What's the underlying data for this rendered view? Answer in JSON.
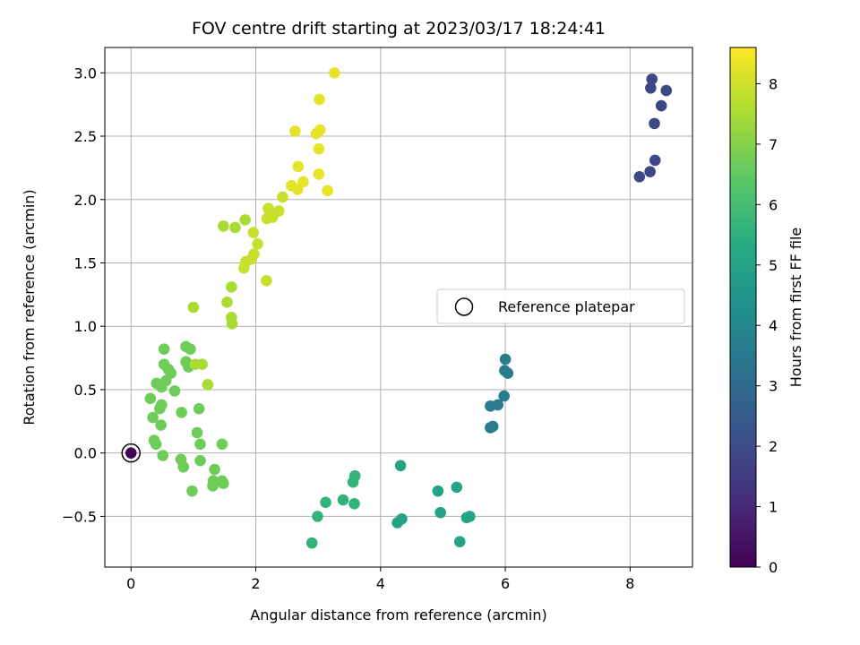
{
  "chart_data": {
    "type": "scatter",
    "title": "FOV centre drift starting at 2023/03/17 18:24:41",
    "xlabel": "Angular distance from reference (arcmin)",
    "ylabel": "Rotation from reference (arcmin)",
    "xlim": [
      -0.42,
      9.0
    ],
    "ylim": [
      -0.9,
      3.2
    ],
    "xticks": [
      0,
      2,
      4,
      6,
      8
    ],
    "xtick_labels": [
      "0",
      "2",
      "4",
      "6",
      "8"
    ],
    "yticks": [
      -0.5,
      0.0,
      0.5,
      1.0,
      1.5,
      2.0,
      2.5,
      3.0
    ],
    "ytick_labels": [
      "−0.5",
      "0.0",
      "0.5",
      "1.0",
      "1.5",
      "2.0",
      "2.5",
      "3.0"
    ],
    "grid": true,
    "colormap": "viridis",
    "colorbar": {
      "label": "Hours from first FF file",
      "range": [
        0,
        8.6
      ],
      "ticks": [
        0,
        1,
        2,
        3,
        4,
        5,
        6,
        7,
        8
      ],
      "tick_labels": [
        "0",
        "1",
        "2",
        "3",
        "4",
        "5",
        "6",
        "7",
        "8"
      ]
    },
    "legend": {
      "placement": "center-right",
      "entries": [
        "Reference platepar"
      ]
    },
    "reference_point": {
      "x": 0,
      "y": 0,
      "hours": 0
    },
    "points": [
      {
        "x": 8.35,
        "y": 2.95,
        "h": 1.85
      },
      {
        "x": 8.33,
        "y": 2.88,
        "h": 1.85
      },
      {
        "x": 8.58,
        "y": 2.86,
        "h": 1.85
      },
      {
        "x": 8.5,
        "y": 2.74,
        "h": 1.85
      },
      {
        "x": 8.39,
        "y": 2.6,
        "h": 1.85
      },
      {
        "x": 8.4,
        "y": 2.31,
        "h": 1.85
      },
      {
        "x": 8.32,
        "y": 2.22,
        "h": 1.85
      },
      {
        "x": 8.15,
        "y": 2.18,
        "h": 1.85
      },
      {
        "x": 6.0,
        "y": 0.74,
        "h": 3.6
      },
      {
        "x": 5.99,
        "y": 0.65,
        "h": 3.6
      },
      {
        "x": 6.04,
        "y": 0.63,
        "h": 3.6
      },
      {
        "x": 5.98,
        "y": 0.45,
        "h": 3.6
      },
      {
        "x": 5.88,
        "y": 0.38,
        "h": 3.6
      },
      {
        "x": 5.76,
        "y": 0.37,
        "h": 3.6
      },
      {
        "x": 5.8,
        "y": 0.21,
        "h": 3.6
      },
      {
        "x": 5.76,
        "y": 0.2,
        "h": 3.6
      },
      {
        "x": 4.32,
        "y": -0.1,
        "h": 5.0
      },
      {
        "x": 5.22,
        "y": -0.27,
        "h": 5.0
      },
      {
        "x": 4.92,
        "y": -0.3,
        "h": 5.0
      },
      {
        "x": 4.96,
        "y": -0.47,
        "h": 5.0
      },
      {
        "x": 5.43,
        "y": -0.5,
        "h": 5.0
      },
      {
        "x": 5.38,
        "y": -0.51,
        "h": 5.0
      },
      {
        "x": 4.34,
        "y": -0.52,
        "h": 5.0
      },
      {
        "x": 4.27,
        "y": -0.55,
        "h": 5.0
      },
      {
        "x": 5.27,
        "y": -0.7,
        "h": 5.0
      },
      {
        "x": 3.59,
        "y": -0.18,
        "h": 5.6
      },
      {
        "x": 3.56,
        "y": -0.23,
        "h": 5.6
      },
      {
        "x": 3.4,
        "y": -0.37,
        "h": 5.6
      },
      {
        "x": 3.58,
        "y": -0.4,
        "h": 5.6
      },
      {
        "x": 3.12,
        "y": -0.39,
        "h": 5.6
      },
      {
        "x": 2.99,
        "y": -0.5,
        "h": 5.6
      },
      {
        "x": 2.9,
        "y": -0.71,
        "h": 5.6
      },
      {
        "x": 0.53,
        "y": 0.82,
        "h": 6.7
      },
      {
        "x": 0.88,
        "y": 0.84,
        "h": 6.7
      },
      {
        "x": 0.95,
        "y": 0.82,
        "h": 6.7
      },
      {
        "x": 0.88,
        "y": 0.72,
        "h": 6.7
      },
      {
        "x": 0.92,
        "y": 0.68,
        "h": 6.7
      },
      {
        "x": 0.53,
        "y": 0.7,
        "h": 6.7
      },
      {
        "x": 0.6,
        "y": 0.66,
        "h": 6.7
      },
      {
        "x": 0.64,
        "y": 0.63,
        "h": 6.7
      },
      {
        "x": 0.56,
        "y": 0.57,
        "h": 6.7
      },
      {
        "x": 0.41,
        "y": 0.55,
        "h": 6.7
      },
      {
        "x": 0.49,
        "y": 0.52,
        "h": 6.7
      },
      {
        "x": 0.7,
        "y": 0.49,
        "h": 6.7
      },
      {
        "x": 0.31,
        "y": 0.43,
        "h": 6.7
      },
      {
        "x": 0.49,
        "y": 0.38,
        "h": 6.7
      },
      {
        "x": 0.46,
        "y": 0.35,
        "h": 6.7
      },
      {
        "x": 1.09,
        "y": 0.35,
        "h": 6.7
      },
      {
        "x": 0.81,
        "y": 0.32,
        "h": 6.7
      },
      {
        "x": 0.35,
        "y": 0.28,
        "h": 6.7
      },
      {
        "x": 0.48,
        "y": 0.22,
        "h": 6.7
      },
      {
        "x": 1.06,
        "y": 0.16,
        "h": 6.7
      },
      {
        "x": 0.37,
        "y": 0.1,
        "h": 6.7
      },
      {
        "x": 0.4,
        "y": 0.07,
        "h": 6.7
      },
      {
        "x": 1.11,
        "y": 0.07,
        "h": 6.7
      },
      {
        "x": 1.46,
        "y": 0.07,
        "h": 6.7
      },
      {
        "x": 0.51,
        "y": -0.02,
        "h": 6.7
      },
      {
        "x": 0.8,
        "y": -0.05,
        "h": 6.7
      },
      {
        "x": 1.11,
        "y": -0.06,
        "h": 6.7
      },
      {
        "x": 0.84,
        "y": -0.11,
        "h": 6.7
      },
      {
        "x": 1.34,
        "y": -0.13,
        "h": 6.7
      },
      {
        "x": 1.32,
        "y": -0.22,
        "h": 6.7
      },
      {
        "x": 1.46,
        "y": -0.22,
        "h": 6.7
      },
      {
        "x": 1.48,
        "y": -0.24,
        "h": 6.7
      },
      {
        "x": 1.31,
        "y": -0.26,
        "h": 6.7
      },
      {
        "x": 0.98,
        "y": -0.3,
        "h": 6.7
      },
      {
        "x": 1.03,
        "y": 0.7,
        "h": 7.5
      },
      {
        "x": 1.14,
        "y": 0.7,
        "h": 7.5
      },
      {
        "x": 1.23,
        "y": 0.54,
        "h": 7.5
      },
      {
        "x": 1.0,
        "y": 1.15,
        "h": 7.5
      },
      {
        "x": 1.54,
        "y": 1.19,
        "h": 7.5
      },
      {
        "x": 1.61,
        "y": 1.07,
        "h": 7.5
      },
      {
        "x": 1.62,
        "y": 1.02,
        "h": 7.5
      },
      {
        "x": 1.61,
        "y": 1.31,
        "h": 7.5
      },
      {
        "x": 1.48,
        "y": 1.79,
        "h": 7.5
      },
      {
        "x": 1.67,
        "y": 1.78,
        "h": 7.5
      },
      {
        "x": 1.83,
        "y": 1.84,
        "h": 7.5
      },
      {
        "x": 2.17,
        "y": 1.36,
        "h": 7.9
      },
      {
        "x": 1.81,
        "y": 1.46,
        "h": 7.9
      },
      {
        "x": 1.84,
        "y": 1.51,
        "h": 7.9
      },
      {
        "x": 1.93,
        "y": 1.53,
        "h": 7.9
      },
      {
        "x": 1.97,
        "y": 1.57,
        "h": 7.9
      },
      {
        "x": 2.03,
        "y": 1.65,
        "h": 7.9
      },
      {
        "x": 1.96,
        "y": 1.74,
        "h": 7.9
      },
      {
        "x": 2.18,
        "y": 1.85,
        "h": 7.9
      },
      {
        "x": 2.27,
        "y": 1.86,
        "h": 7.9
      },
      {
        "x": 2.2,
        "y": 1.93,
        "h": 7.9
      },
      {
        "x": 2.37,
        "y": 1.91,
        "h": 7.9
      },
      {
        "x": 2.43,
        "y": 2.02,
        "h": 7.9
      },
      {
        "x": 2.57,
        "y": 2.11,
        "h": 8.3
      },
      {
        "x": 2.67,
        "y": 2.08,
        "h": 8.3
      },
      {
        "x": 2.76,
        "y": 2.14,
        "h": 8.3
      },
      {
        "x": 2.68,
        "y": 2.26,
        "h": 8.3
      },
      {
        "x": 3.01,
        "y": 2.2,
        "h": 8.3
      },
      {
        "x": 3.15,
        "y": 2.07,
        "h": 8.3
      },
      {
        "x": 3.01,
        "y": 2.4,
        "h": 8.3
      },
      {
        "x": 2.97,
        "y": 2.52,
        "h": 8.3
      },
      {
        "x": 3.03,
        "y": 2.55,
        "h": 8.3
      },
      {
        "x": 2.63,
        "y": 2.54,
        "h": 8.3
      },
      {
        "x": 3.02,
        "y": 2.79,
        "h": 8.3
      },
      {
        "x": 3.26,
        "y": 3.0,
        "h": 8.3
      }
    ]
  }
}
